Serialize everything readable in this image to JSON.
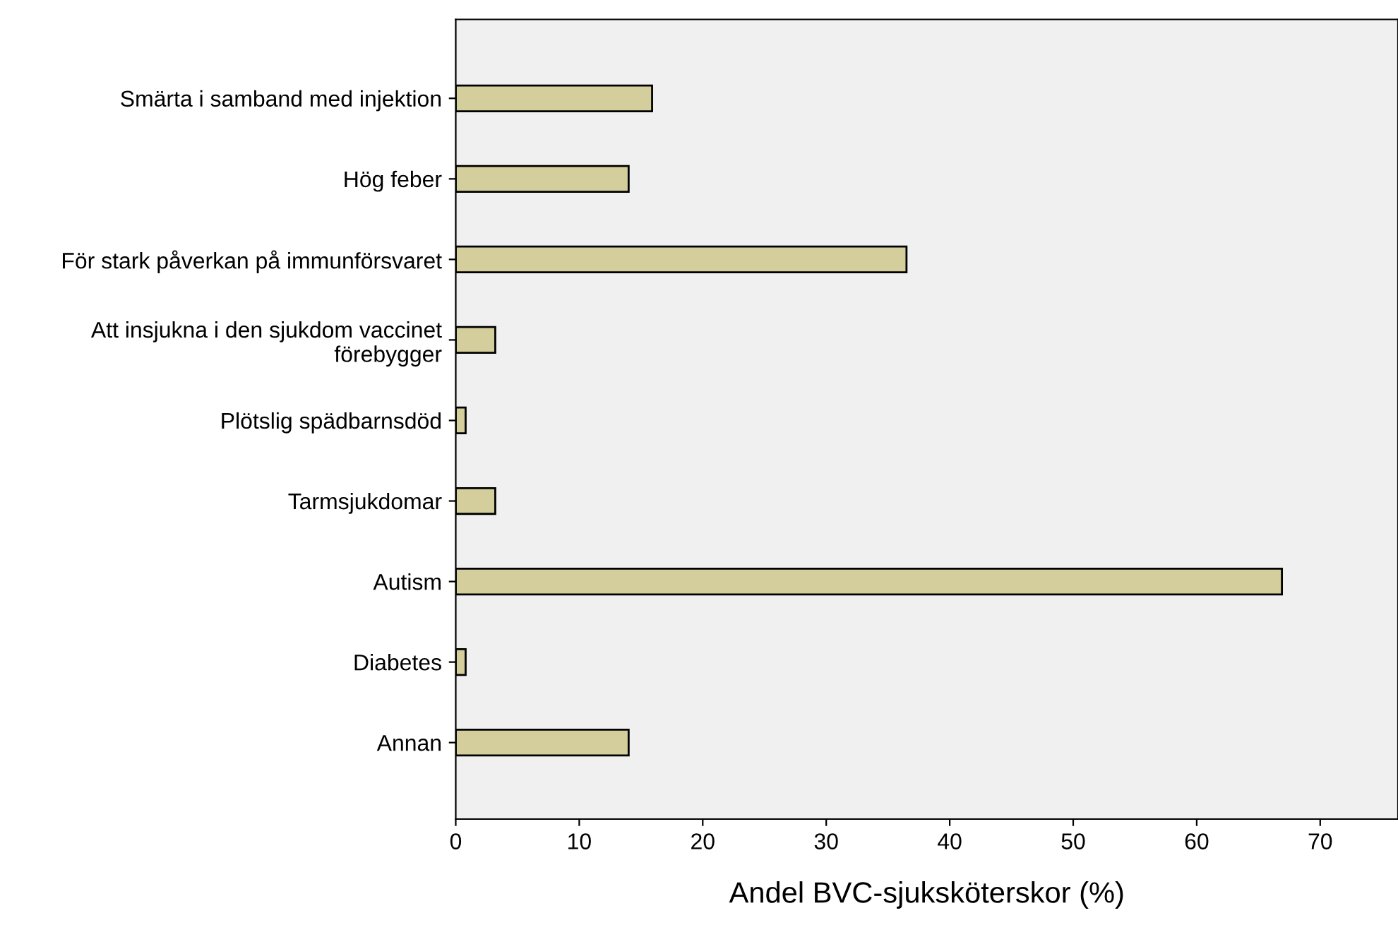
{
  "chart_data": {
    "type": "bar",
    "orientation": "horizontal",
    "categories": [
      "Smärta i samband med injektion",
      "Hög feber",
      "För stark påverkan på immunförsvaret",
      "Att insjukna i den sjukdom vaccinet\nförebygger",
      "Plötslig spädbarnsdöd",
      "Tarmsjukdomar",
      "Autism",
      "Diabetes",
      "Annan"
    ],
    "values": [
      15.9,
      14.0,
      36.5,
      3.2,
      0.8,
      3.2,
      66.9,
      0.8,
      14.0
    ],
    "color": "#d3ce9b",
    "xlabel": "Andel BVC-sjuksköterskor (%)",
    "xlim": [
      0,
      76.3
    ],
    "xticks": [
      0,
      10,
      20,
      30,
      40,
      50,
      60,
      70
    ],
    "grid": false,
    "legend": false
  }
}
